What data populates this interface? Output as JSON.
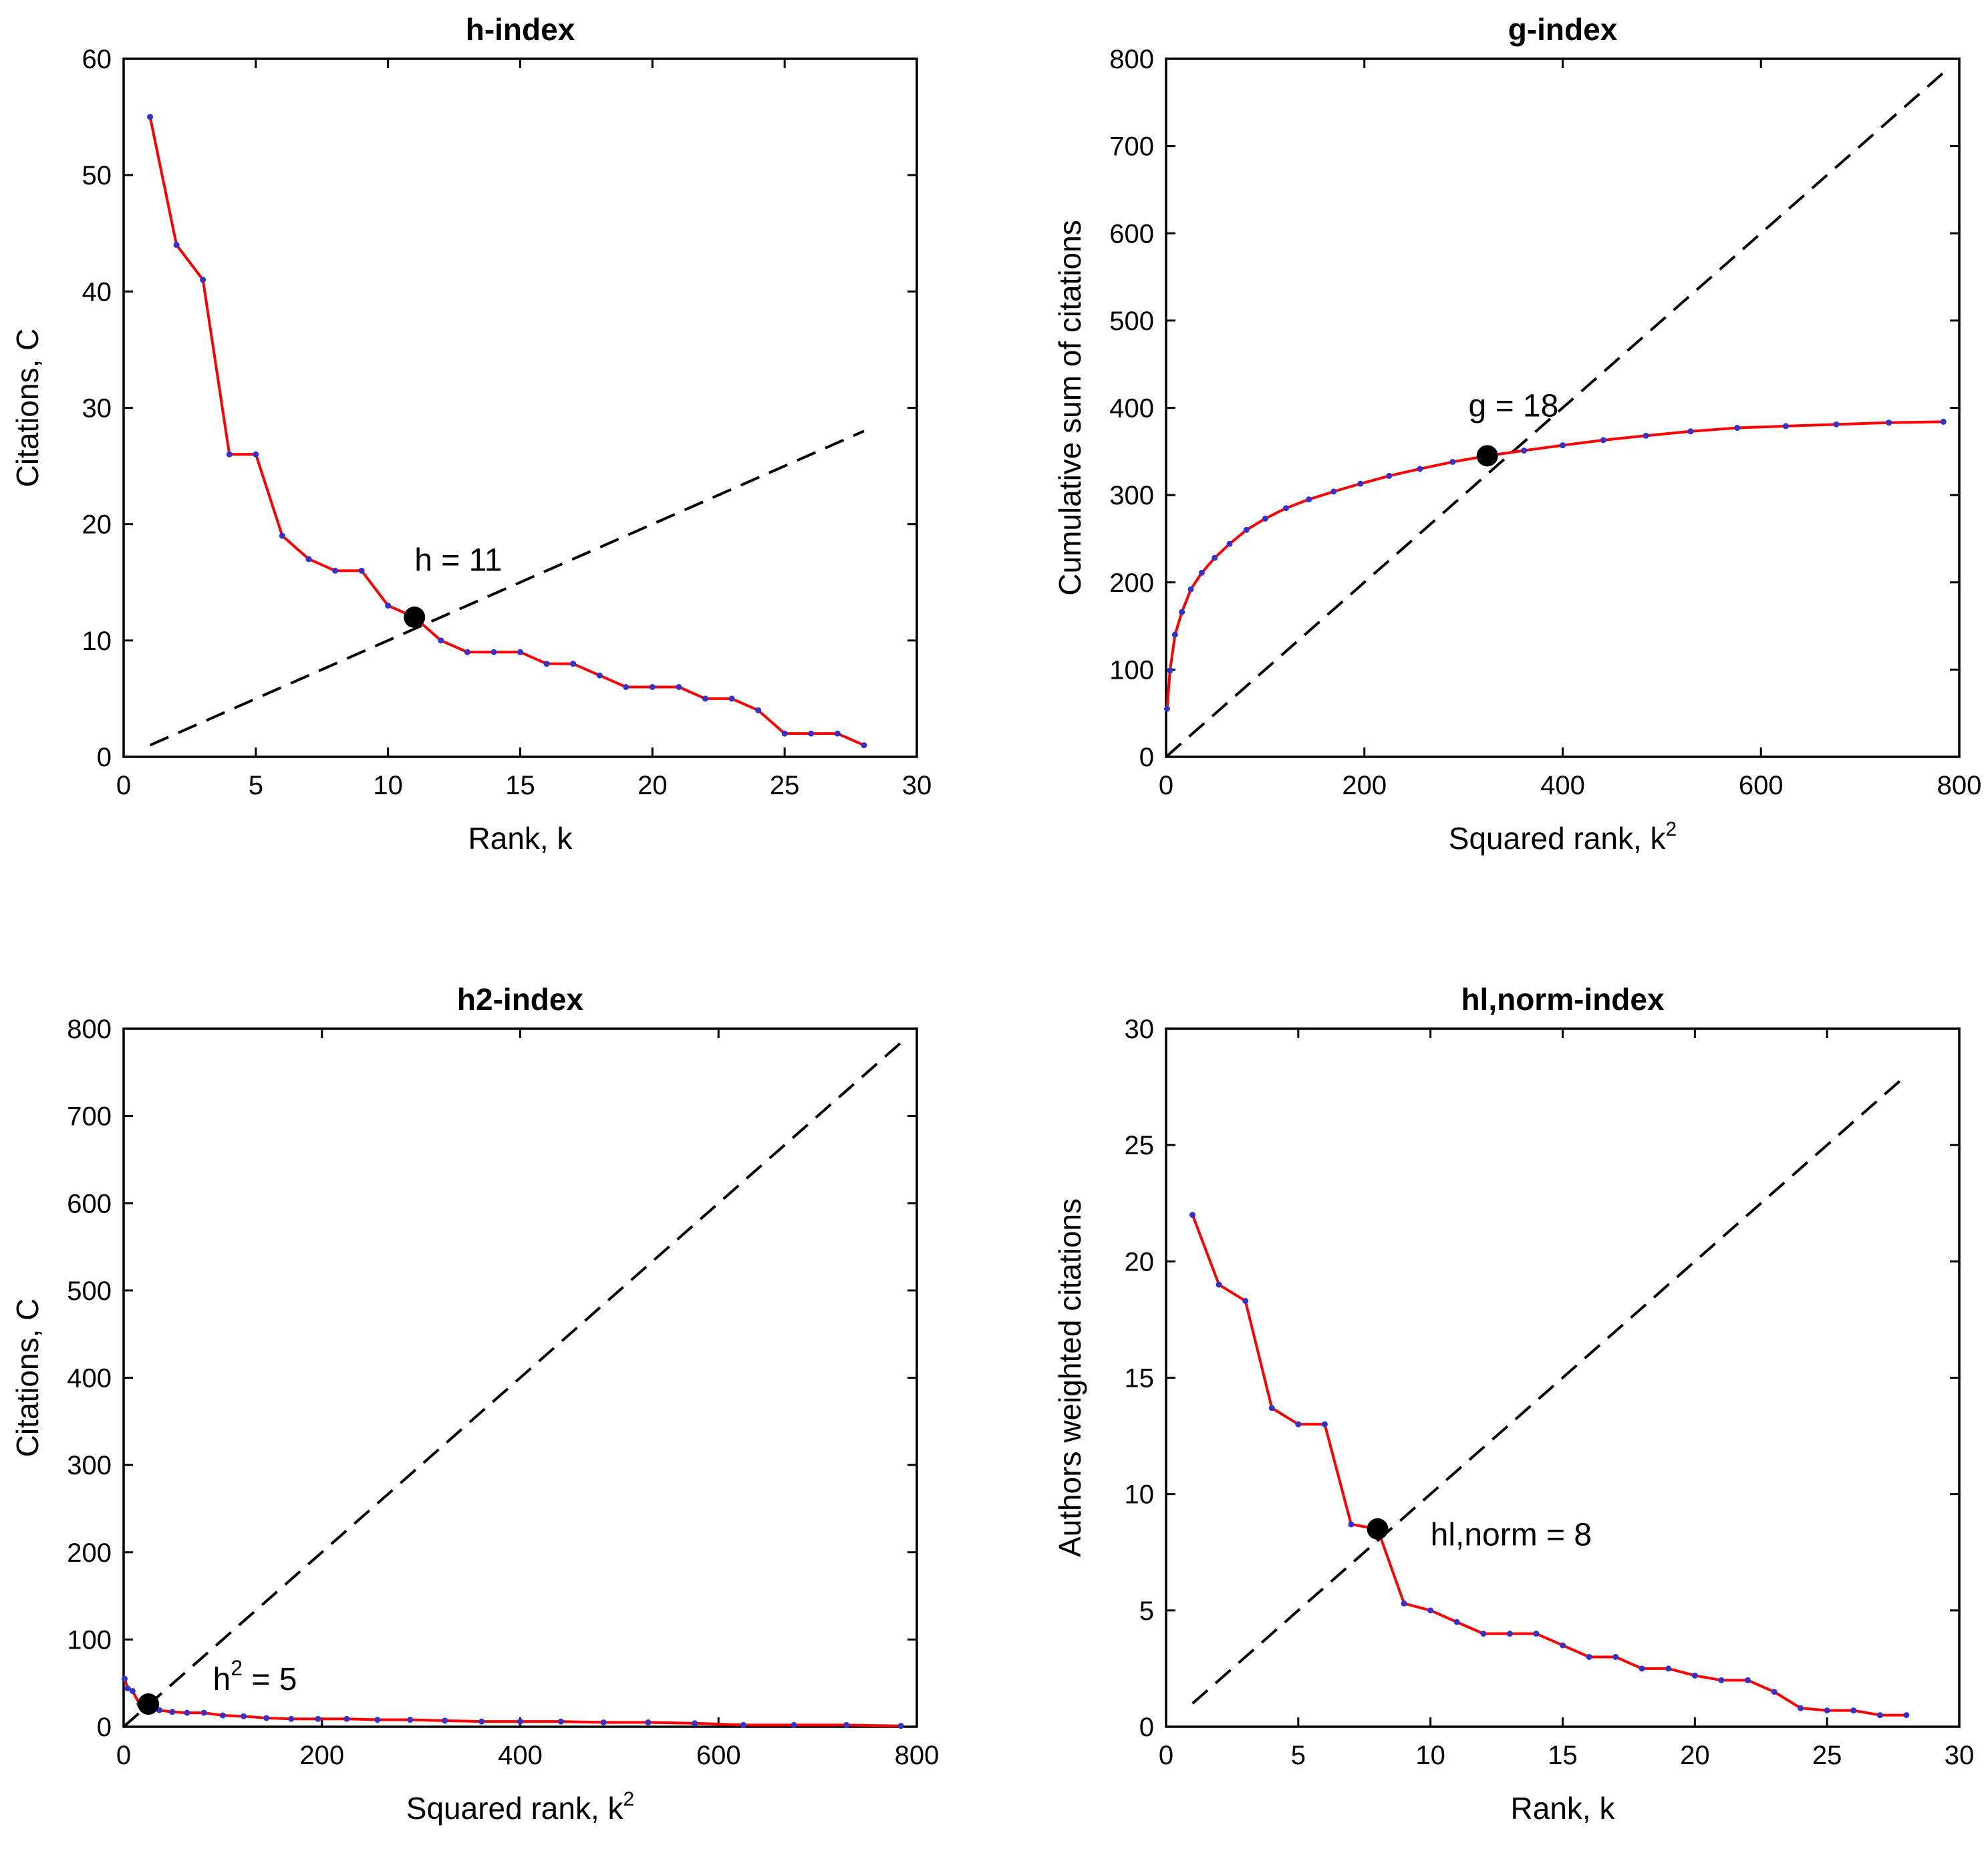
{
  "colors": {
    "line": "#ff0000",
    "marker": "#3333cc",
    "reference_line": "#000000",
    "highlight": "#000000",
    "axes": "#000000",
    "background": "#ffffff"
  },
  "chart_data": [
    {
      "id": "h",
      "type": "line",
      "title": "h-index",
      "xlabel": "Rank, k",
      "xlabel_sup": "",
      "ylabel": "Citations, C",
      "xlim": [
        0,
        30
      ],
      "ylim": [
        0,
        60
      ],
      "xticks": [
        0,
        5,
        10,
        15,
        20,
        25,
        30
      ],
      "yticks": [
        0,
        10,
        20,
        30,
        40,
        50,
        60
      ],
      "x": [
        1,
        2,
        3,
        4,
        5,
        6,
        7,
        8,
        9,
        10,
        11,
        12,
        13,
        14,
        15,
        16,
        17,
        18,
        19,
        20,
        21,
        22,
        23,
        24,
        25,
        26,
        27,
        28
      ],
      "y": [
        55,
        44,
        41,
        26,
        26,
        19,
        17,
        16,
        16,
        13,
        12,
        10,
        9,
        9,
        9,
        8,
        8,
        7,
        6,
        6,
        6,
        5,
        5,
        4,
        2,
        2,
        2,
        1
      ],
      "reference_line": {
        "style": "dashed",
        "x": [
          1,
          28
        ],
        "y": [
          1,
          28
        ]
      },
      "highlight_point": {
        "x": 11,
        "y": 12
      },
      "annotation": {
        "text": "h = 11",
        "sup": "",
        "after": "",
        "x": 11,
        "y": 16
      }
    },
    {
      "id": "g",
      "type": "line",
      "title": "g-index",
      "xlabel": "Squared rank, k",
      "xlabel_sup": "2",
      "ylabel": "Cumulative sum of citations",
      "xlim": [
        0,
        800
      ],
      "ylim": [
        0,
        800
      ],
      "xticks": [
        0,
        200,
        400,
        600,
        800
      ],
      "yticks": [
        0,
        100,
        200,
        300,
        400,
        500,
        600,
        700,
        800
      ],
      "x": [
        1,
        4,
        9,
        16,
        25,
        36,
        49,
        64,
        81,
        100,
        121,
        144,
        169,
        196,
        225,
        256,
        289,
        324,
        361,
        400,
        441,
        484,
        529,
        576,
        625,
        676,
        729,
        784
      ],
      "y": [
        55,
        99,
        140,
        166,
        192,
        211,
        228,
        244,
        260,
        273,
        285,
        295,
        304,
        313,
        322,
        330,
        338,
        345,
        351,
        357,
        363,
        368,
        373,
        377,
        379,
        381,
        383,
        384
      ],
      "reference_line": {
        "style": "dashed",
        "x": [
          0,
          784
        ],
        "y": [
          0,
          784
        ]
      },
      "highlight_point": {
        "x": 324,
        "y": 345
      },
      "annotation": {
        "text": "g = 18",
        "sup": "",
        "after": "",
        "x": 305,
        "y": 390
      }
    },
    {
      "id": "h2",
      "type": "line",
      "title": "h2-index",
      "xlabel": "Squared rank, k",
      "xlabel_sup": "2",
      "ylabel": "Citations, C",
      "xlim": [
        0,
        800
      ],
      "ylim": [
        0,
        800
      ],
      "xticks": [
        0,
        200,
        400,
        600,
        800
      ],
      "yticks": [
        0,
        100,
        200,
        300,
        400,
        500,
        600,
        700,
        800
      ],
      "x": [
        1,
        4,
        9,
        16,
        25,
        36,
        49,
        64,
        81,
        100,
        121,
        144,
        169,
        196,
        225,
        256,
        289,
        324,
        361,
        400,
        441,
        484,
        529,
        576,
        625,
        676,
        729,
        784
      ],
      "y": [
        55,
        44,
        41,
        26,
        26,
        19,
        17,
        16,
        16,
        13,
        12,
        10,
        9,
        9,
        9,
        8,
        8,
        7,
        6,
        6,
        6,
        5,
        5,
        4,
        2,
        2,
        2,
        1
      ],
      "reference_line": {
        "style": "dashed",
        "x": [
          0,
          784
        ],
        "y": [
          0,
          784
        ]
      },
      "highlight_point": {
        "x": 25,
        "y": 26
      },
      "annotation": {
        "text": "h",
        "sup": "2",
        "after": " = 5",
        "x": 90,
        "y": 42
      }
    },
    {
      "id": "hl",
      "type": "line",
      "title": "hl,norm-index",
      "xlabel": "Rank, k",
      "xlabel_sup": "",
      "ylabel": "Authors weighted citations",
      "xlim": [
        0,
        30
      ],
      "ylim": [
        0,
        30
      ],
      "xticks": [
        0,
        5,
        10,
        15,
        20,
        25,
        30
      ],
      "yticks": [
        0,
        5,
        10,
        15,
        20,
        25,
        30
      ],
      "x": [
        1,
        2,
        3,
        4,
        5,
        6,
        7,
        8,
        9,
        10,
        11,
        12,
        13,
        14,
        15,
        16,
        17,
        18,
        19,
        20,
        21,
        22,
        23,
        24,
        25,
        26,
        27,
        28
      ],
      "y": [
        22,
        19,
        18.3,
        13.7,
        13,
        13,
        8.7,
        8.5,
        5.3,
        5,
        4.5,
        4,
        4,
        4,
        3.5,
        3,
        3,
        2.5,
        2.5,
        2.2,
        2,
        2,
        1.5,
        0.8,
        0.7,
        0.7,
        0.5,
        0.5
      ],
      "reference_line": {
        "style": "dashed",
        "x": [
          1,
          28
        ],
        "y": [
          1,
          28
        ]
      },
      "highlight_point": {
        "x": 8,
        "y": 8.5
      },
      "annotation": {
        "text": "hl,norm = 8",
        "sup": "",
        "after": "",
        "x": 10,
        "y": 7.8
      }
    }
  ]
}
